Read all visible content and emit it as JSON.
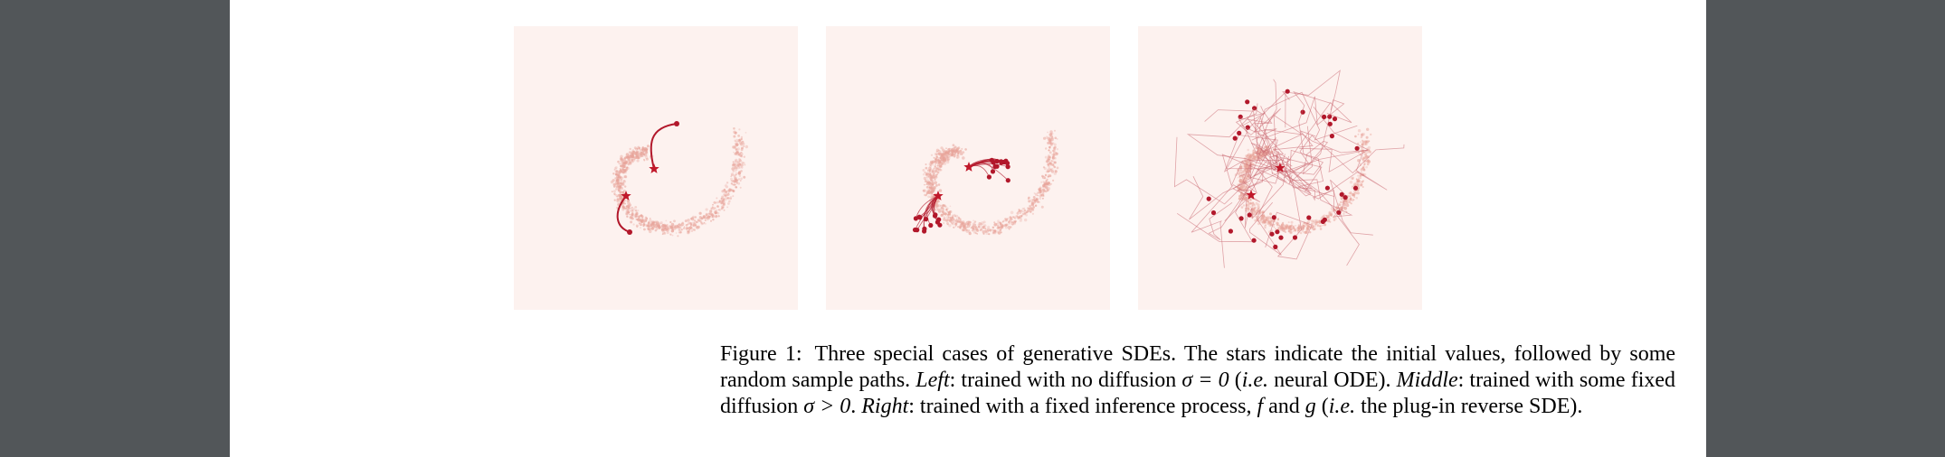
{
  "figure": {
    "panels": [
      {
        "id": "left",
        "label": "Left"
      },
      {
        "id": "middle",
        "label": "Middle"
      },
      {
        "id": "right",
        "label": "Right"
      }
    ],
    "colors": {
      "background": "#fdf2ef",
      "particles": "#e8a49a",
      "paths": "#b2182b",
      "star": "#c0182a",
      "endpoint": "#b2182b",
      "noisy_paths": "#c8656e"
    }
  },
  "caption": {
    "figure_label": "Figure 1:",
    "s1": "Three special cases of generative SDEs. The stars indicate the initial values, followed by some random sample paths.",
    "left_label": "Left",
    "s2": ": trained with no diffusion ",
    "sigma_zero": "σ = 0",
    "s3": " (",
    "ie1": "i.e.",
    "s4": " neural ODE). ",
    "middle_label": "Middle",
    "s5": ": trained with some fixed diffusion ",
    "sigma_pos": "σ > 0",
    "s6": ". ",
    "right_label": "Right",
    "s7": ": trained with a fixed inference process, ",
    "f": "f",
    "s8": " and ",
    "g": "g",
    "s9": " (",
    "ie2": "i.e.",
    "s10": " the plug-in reverse SDE)."
  }
}
